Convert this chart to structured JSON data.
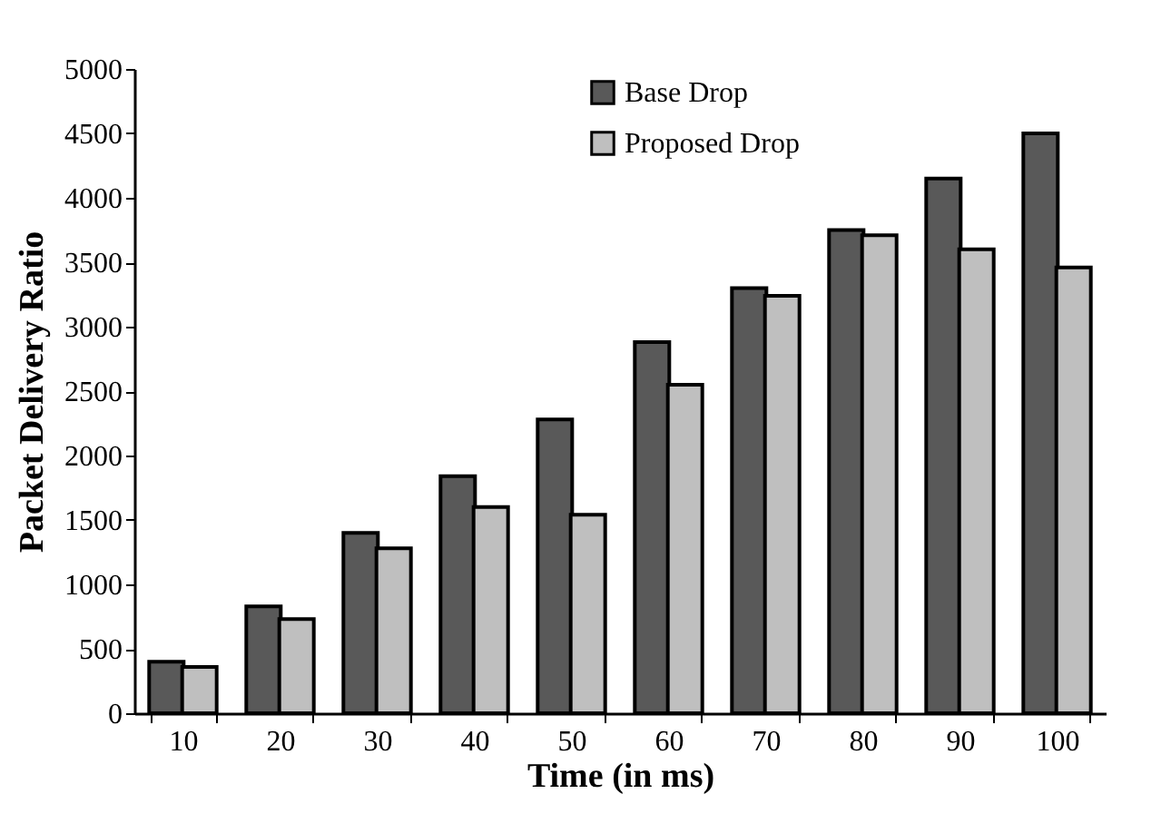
{
  "chart_data": {
    "type": "bar",
    "xlabel": "Time (in ms)",
    "ylabel": "Packet Delivery Ratio",
    "categories": [
      "10",
      "20",
      "30",
      "40",
      "50",
      "60",
      "70",
      "80",
      "90",
      "100"
    ],
    "series": [
      {
        "name": "Base Drop",
        "color": "#595959",
        "values": [
          400,
          830,
          1400,
          1840,
          2280,
          2880,
          3300,
          3750,
          4150,
          4500
        ]
      },
      {
        "name": "Proposed Drop",
        "color": "#bfbfbf",
        "values": [
          360,
          730,
          1280,
          1600,
          1540,
          2550,
          3240,
          3710,
          3600,
          3460
        ]
      }
    ],
    "ylim": [
      0,
      5000
    ],
    "yticks": [
      0,
      500,
      1000,
      1500,
      2000,
      2500,
      3000,
      3500,
      4000,
      4500,
      5000
    ],
    "grid": false,
    "legend": "top"
  }
}
